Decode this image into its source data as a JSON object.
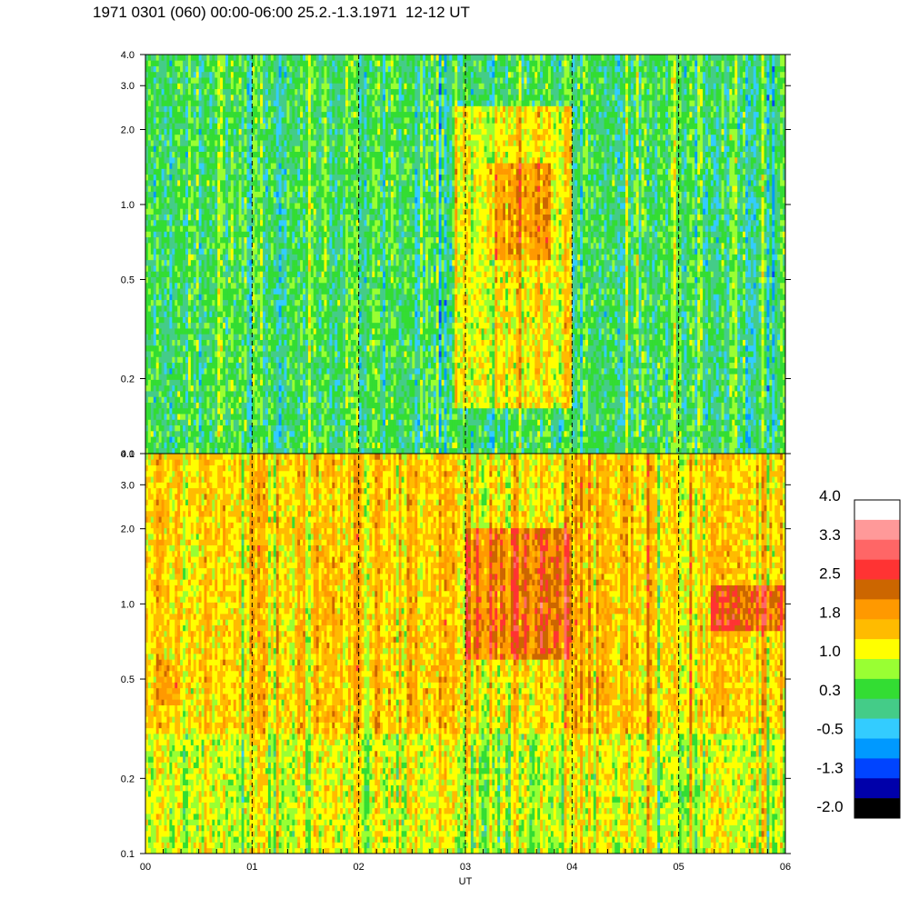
{
  "chart_data": {
    "type": "heatmap",
    "title": "1971 0301 (060) 00:00-06:00 25.2.-1.3.1971  12-12 UT",
    "xlabel": "UT",
    "x_ticks": [
      "00",
      "01",
      "02",
      "03",
      "04",
      "05",
      "06"
    ],
    "x_range_hours": [
      0,
      6
    ],
    "y_scale": "log",
    "y_range": [
      0.1,
      4.0
    ],
    "y_ticks": [
      "0.1",
      "0.2",
      "0.5",
      "1.0",
      "2.0",
      "3.0",
      "4.0"
    ],
    "y_tick_values": [
      0.1,
      0.2,
      0.5,
      1.0,
      2.0,
      3.0,
      4.0
    ],
    "grid": "dashed vertical lines at each hour",
    "panels": [
      {
        "name": "upper",
        "dominant_level": 0.3,
        "features": [
          {
            "x_range_hours": [
              2.9,
              4.0
            ],
            "y_range": [
              0.15,
              2.5
            ],
            "level": 1.2
          },
          {
            "x_range_hours": [
              3.2,
              3.8
            ],
            "y_range": [
              0.6,
              1.5
            ],
            "level": 1.8
          }
        ]
      },
      {
        "name": "lower",
        "dominant_level": 1.4,
        "features": [
          {
            "x_range_hours": [
              0.0,
              6.0
            ],
            "y_range": [
              0.1,
              0.3
            ],
            "level": 1.0
          },
          {
            "x_range_hours": [
              3.0,
              4.0
            ],
            "y_range": [
              0.6,
              2.0
            ],
            "level": 2.3
          },
          {
            "x_range_hours": [
              5.3,
              6.0
            ],
            "y_range": [
              0.8,
              1.2
            ],
            "level": 2.3
          },
          {
            "x_range_hours": [
              0.1,
              0.3
            ],
            "y_range": [
              0.4,
              0.6
            ],
            "level": 1.8
          }
        ]
      }
    ],
    "colorbar": {
      "labels": [
        "4.0",
        "3.3",
        "2.5",
        "1.8",
        "1.0",
        "0.3",
        "-0.5",
        "-1.3",
        "-2.0"
      ],
      "colors": [
        "#ffffff",
        "#ff9999",
        "#ff6666",
        "#ff3333",
        "#cc6600",
        "#ff9900",
        "#ffbb00",
        "#ffff00",
        "#99ff33",
        "#33dd33",
        "#44cc88",
        "#33ccff",
        "#0099ff",
        "#0044ff",
        "#0000aa",
        "#000000"
      ]
    }
  }
}
